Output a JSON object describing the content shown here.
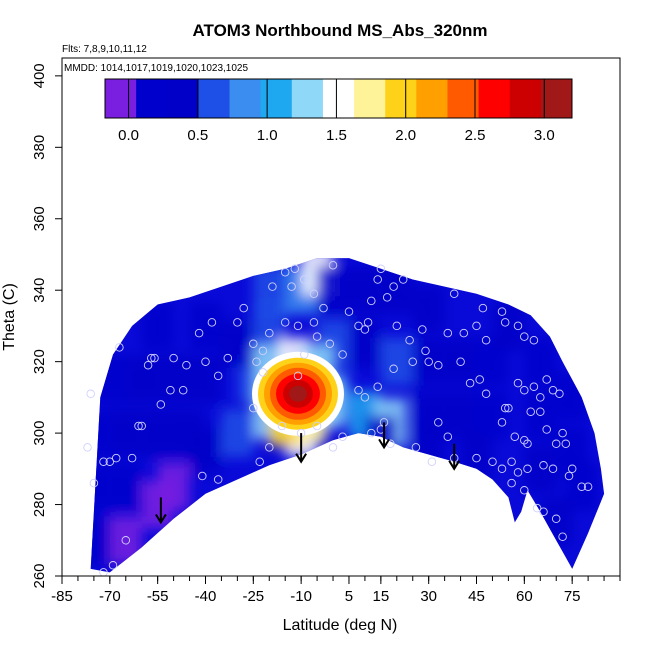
{
  "chart_data": {
    "type": "heatmap",
    "title": "ATOM3 Northbound MS_Abs_320nm",
    "xlabel": "Latitude (deg N)",
    "ylabel": "Theta (C)",
    "xlim": [
      -85,
      90
    ],
    "ylim": [
      260,
      405
    ],
    "x_ticks": [
      -85,
      -70,
      -55,
      -40,
      -25,
      -10,
      5,
      15,
      30,
      45,
      60,
      75
    ],
    "x_tick_labels": [
      "-85",
      "-70",
      "-55",
      "-40",
      "-25",
      "-10",
      "5",
      "15",
      "30",
      "45",
      "60",
      "75"
    ],
    "x_minor_step": 5,
    "y_ticks": [
      260,
      280,
      300,
      320,
      340,
      360,
      380,
      400
    ],
    "y_tick_labels": [
      "260",
      "280",
      "300",
      "320",
      "340",
      "360",
      "380",
      "400"
    ],
    "annotations": [
      "Flts: 7,8,9,10,11,12",
      "MMDD: 1014,1017,1019,1020,1023,1025"
    ],
    "colorbar": {
      "range": [
        -0.17,
        3.2
      ],
      "ticks": [
        0.0,
        0.5,
        1.0,
        1.5,
        2.0,
        2.5,
        3.0
      ],
      "tick_labels": [
        "0.0",
        "0.5",
        "1.0",
        "1.5",
        "2.0",
        "2.5",
        "3.0"
      ],
      "colors": [
        "#7a1fe0",
        "#0000cc",
        "#0000c8",
        "#1e4fe6",
        "#3b8ef0",
        "#1ea8f0",
        "#8fd8f8",
        "#ffffff",
        "#fff39a",
        "#ffd21a",
        "#ffa000",
        "#ff5a00",
        "#ff0000",
        "#cc0000",
        "#a01818"
      ]
    },
    "data_boundary": {
      "upper": [
        [
          -73,
          310
        ],
        [
          -69,
          322
        ],
        [
          -63,
          330
        ],
        [
          -55,
          336
        ],
        [
          -45,
          338
        ],
        [
          -35,
          341
        ],
        [
          -25,
          344
        ],
        [
          -15,
          346
        ],
        [
          -5,
          349
        ],
        [
          5,
          349
        ],
        [
          15,
          346
        ],
        [
          25,
          343
        ],
        [
          35,
          341
        ],
        [
          45,
          339
        ],
        [
          55,
          336
        ],
        [
          62,
          333
        ],
        [
          68,
          327
        ],
        [
          72,
          320
        ],
        [
          78,
          310
        ],
        [
          82,
          300
        ],
        [
          84,
          290
        ],
        [
          85,
          283
        ]
      ],
      "lower": [
        [
          85,
          283
        ],
        [
          80,
          272
        ],
        [
          75,
          262
        ],
        [
          70,
          270
        ],
        [
          65,
          278
        ],
        [
          61,
          284
        ],
        [
          59,
          278
        ],
        [
          57,
          275
        ],
        [
          55,
          282
        ],
        [
          50,
          287
        ],
        [
          45,
          290
        ],
        [
          38,
          292
        ],
        [
          30,
          294
        ],
        [
          22,
          296
        ],
        [
          15,
          299
        ],
        [
          8,
          300
        ],
        [
          0,
          298
        ],
        [
          -10,
          294
        ],
        [
          -20,
          291
        ],
        [
          -30,
          287
        ],
        [
          -40,
          283
        ],
        [
          -50,
          276
        ],
        [
          -60,
          268
        ],
        [
          -70,
          261
        ],
        [
          -76,
          262
        ]
      ]
    },
    "hotspot": {
      "x": -11,
      "y": 311,
      "value": 3.1
    },
    "cells": [
      {
        "x": -75,
        "y": 270,
        "value": 0.1
      },
      {
        "x": -70,
        "y": 270,
        "value": 0.15
      },
      {
        "x": -65,
        "y": 270,
        "value": 0.0
      },
      {
        "x": -75,
        "y": 285,
        "value": 0.15
      },
      {
        "x": -65,
        "y": 285,
        "value": 0.1
      },
      {
        "x": -55,
        "y": 280,
        "value": -0.1
      },
      {
        "x": -50,
        "y": 285,
        "value": -0.05
      },
      {
        "x": -75,
        "y": 300,
        "value": 0.25
      },
      {
        "x": -65,
        "y": 300,
        "value": 0.3
      },
      {
        "x": -55,
        "y": 300,
        "value": 0.35
      },
      {
        "x": -45,
        "y": 300,
        "value": 0.45
      },
      {
        "x": -70,
        "y": 315,
        "value": 0.2
      },
      {
        "x": -60,
        "y": 315,
        "value": 0.3
      },
      {
        "x": -50,
        "y": 315,
        "value": 0.35
      },
      {
        "x": -40,
        "y": 295,
        "value": 0.5
      },
      {
        "x": -30,
        "y": 300,
        "value": 0.6
      },
      {
        "x": -25,
        "y": 315,
        "value": 0.55
      },
      {
        "x": -40,
        "y": 315,
        "value": 0.45
      },
      {
        "x": -30,
        "y": 325,
        "value": 0.3
      },
      {
        "x": -20,
        "y": 330,
        "value": 0.6
      },
      {
        "x": -40,
        "y": 330,
        "value": 0.25
      },
      {
        "x": -55,
        "y": 330,
        "value": 0.25
      },
      {
        "x": -10,
        "y": 340,
        "value": 0.9
      },
      {
        "x": -20,
        "y": 340,
        "value": 0.7
      },
      {
        "x": -5,
        "y": 345,
        "value": 1.5
      },
      {
        "x": 0,
        "y": 340,
        "value": 0.5
      },
      {
        "x": 10,
        "y": 340,
        "value": 0.4
      },
      {
        "x": 20,
        "y": 340,
        "value": 0.5
      },
      {
        "x": 30,
        "y": 335,
        "value": 0.3
      },
      {
        "x": 0,
        "y": 325,
        "value": 0.6
      },
      {
        "x": 10,
        "y": 325,
        "value": 0.5
      },
      {
        "x": 20,
        "y": 320,
        "value": 0.7
      },
      {
        "x": 30,
        "y": 320,
        "value": 0.4
      },
      {
        "x": 40,
        "y": 320,
        "value": 0.3
      },
      {
        "x": 50,
        "y": 320,
        "value": 0.25
      },
      {
        "x": 0,
        "y": 310,
        "value": 0.9
      },
      {
        "x": 10,
        "y": 305,
        "value": 1.0
      },
      {
        "x": 18,
        "y": 303,
        "value": 1.2
      },
      {
        "x": 30,
        "y": 305,
        "value": 0.4
      },
      {
        "x": 40,
        "y": 305,
        "value": 0.3
      },
      {
        "x": 50,
        "y": 305,
        "value": 0.2
      },
      {
        "x": 55,
        "y": 330,
        "value": 0.3
      },
      {
        "x": 65,
        "y": 320,
        "value": 0.2
      },
      {
        "x": 65,
        "y": 305,
        "value": 0.25
      },
      {
        "x": 75,
        "y": 310,
        "value": 0.2
      },
      {
        "x": 75,
        "y": 295,
        "value": 0.25
      },
      {
        "x": 65,
        "y": 290,
        "value": 0.3
      },
      {
        "x": 78,
        "y": 285,
        "value": 0.2
      },
      {
        "x": 70,
        "y": 275,
        "value": 0.3
      },
      {
        "x": 15,
        "y": 298,
        "value": 0.4
      },
      {
        "x": 30,
        "y": 296,
        "value": 0.35
      },
      {
        "x": 45,
        "y": 293,
        "value": 0.3
      },
      {
        "x": -20,
        "y": 305,
        "value": 1.4
      },
      {
        "x": -20,
        "y": 318,
        "value": 1.3
      },
      {
        "x": -12,
        "y": 320,
        "value": 1.6
      },
      {
        "x": -5,
        "y": 318,
        "value": 1.2
      },
      {
        "x": -2,
        "y": 308,
        "value": 1.3
      },
      {
        "x": -10,
        "y": 300,
        "value": 1.5
      },
      {
        "x": -15,
        "y": 303,
        "value": 1.9
      },
      {
        "x": -7,
        "y": 304,
        "value": 1.8
      }
    ],
    "observations": [
      [
        -76,
        311
      ],
      [
        -77,
        296
      ],
      [
        -75,
        286
      ],
      [
        -72,
        292
      ],
      [
        -70,
        292
      ],
      [
        -68,
        293
      ],
      [
        -63,
        293
      ],
      [
        -67,
        324
      ],
      [
        -61,
        302
      ],
      [
        -58,
        319
      ],
      [
        -57,
        321
      ],
      [
        -56,
        321
      ],
      [
        -54,
        308
      ],
      [
        -50,
        321
      ],
      [
        -46,
        319
      ],
      [
        -47,
        312
      ],
      [
        -42,
        328
      ],
      [
        -38,
        331
      ],
      [
        -40,
        320
      ],
      [
        -36,
        316
      ],
      [
        -33,
        321
      ],
      [
        -30,
        331
      ],
      [
        -28,
        335
      ],
      [
        -25,
        325
      ],
      [
        -24,
        320
      ],
      [
        -22,
        323
      ],
      [
        -41,
        288
      ],
      [
        -36,
        287
      ],
      [
        -23,
        292
      ],
      [
        -20,
        296
      ],
      [
        -16,
        302
      ],
      [
        -10,
        300
      ],
      [
        -5,
        302
      ],
      [
        0,
        296
      ],
      [
        3,
        299
      ],
      [
        -25,
        307
      ],
      [
        -22,
        317
      ],
      [
        -19,
        341
      ],
      [
        -15,
        345
      ],
      [
        -12,
        346
      ],
      [
        -9,
        343
      ],
      [
        -6,
        339
      ],
      [
        -3,
        335
      ],
      [
        0,
        347
      ],
      [
        -13,
        341
      ],
      [
        -15,
        331
      ],
      [
        -11,
        330
      ],
      [
        -6,
        331
      ],
      [
        -9,
        322
      ],
      [
        -5,
        327
      ],
      [
        -1,
        325
      ],
      [
        3,
        322
      ],
      [
        -11,
        316
      ],
      [
        -69,
        263
      ],
      [
        -72,
        261
      ],
      [
        -65,
        270
      ],
      [
        -60,
        302
      ],
      [
        -51,
        312
      ],
      [
        -20,
        328
      ],
      [
        5,
        334
      ],
      [
        8,
        330
      ],
      [
        10,
        329
      ],
      [
        11,
        331
      ],
      [
        12,
        337
      ],
      [
        14,
        343
      ],
      [
        15,
        346
      ],
      [
        17,
        338
      ],
      [
        19,
        341
      ],
      [
        20,
        330
      ],
      [
        22,
        343
      ],
      [
        8,
        312
      ],
      [
        10,
        310
      ],
      [
        14,
        313
      ],
      [
        16,
        303
      ],
      [
        18,
        297
      ],
      [
        12,
        300
      ],
      [
        15,
        301
      ],
      [
        26,
        296
      ],
      [
        31,
        292
      ],
      [
        33,
        303
      ],
      [
        36,
        299
      ],
      [
        38,
        293
      ],
      [
        19,
        318
      ],
      [
        24,
        326
      ],
      [
        28,
        329
      ],
      [
        29,
        323
      ],
      [
        33,
        319
      ],
      [
        36,
        328
      ],
      [
        38,
        339
      ],
      [
        41,
        328
      ],
      [
        45,
        330
      ],
      [
        47,
        335
      ],
      [
        48,
        326
      ],
      [
        53,
        334
      ],
      [
        54,
        331
      ],
      [
        58,
        330
      ],
      [
        60,
        327
      ],
      [
        63,
        326
      ],
      [
        43,
        314
      ],
      [
        46,
        315
      ],
      [
        48,
        311
      ],
      [
        53,
        303
      ],
      [
        55,
        307
      ],
      [
        57,
        299
      ],
      [
        60,
        298
      ],
      [
        61,
        297
      ],
      [
        62,
        306
      ],
      [
        65,
        306
      ],
      [
        67,
        301
      ],
      [
        70,
        297
      ],
      [
        73,
        297
      ],
      [
        54,
        307
      ],
      [
        58,
        314
      ],
      [
        60,
        312
      ],
      [
        63,
        313
      ],
      [
        65,
        310
      ],
      [
        67,
        315
      ],
      [
        69,
        312
      ],
      [
        71,
        311
      ],
      [
        72,
        300
      ],
      [
        75,
        290
      ],
      [
        78,
        285
      ],
      [
        80,
        285
      ],
      [
        45,
        293
      ],
      [
        50,
        292
      ],
      [
        53,
        290
      ],
      [
        56,
        292
      ],
      [
        58,
        289
      ],
      [
        61,
        290
      ],
      [
        66,
        291
      ],
      [
        69,
        290
      ],
      [
        74,
        288
      ],
      [
        56,
        286
      ],
      [
        60,
        284
      ],
      [
        64,
        279
      ],
      [
        66,
        278
      ],
      [
        70,
        276
      ],
      [
        72,
        271
      ],
      [
        25,
        320
      ],
      [
        30,
        320
      ],
      [
        40,
        320
      ]
    ],
    "arrows": [
      {
        "x": -54,
        "y_from": 282,
        "y_to": 275
      },
      {
        "x": -10,
        "y_from": 300,
        "y_to": 292
      },
      {
        "x": 16,
        "y_from": 303,
        "y_to": 296
      },
      {
        "x": 38,
        "y_from": 297,
        "y_to": 290
      }
    ]
  }
}
